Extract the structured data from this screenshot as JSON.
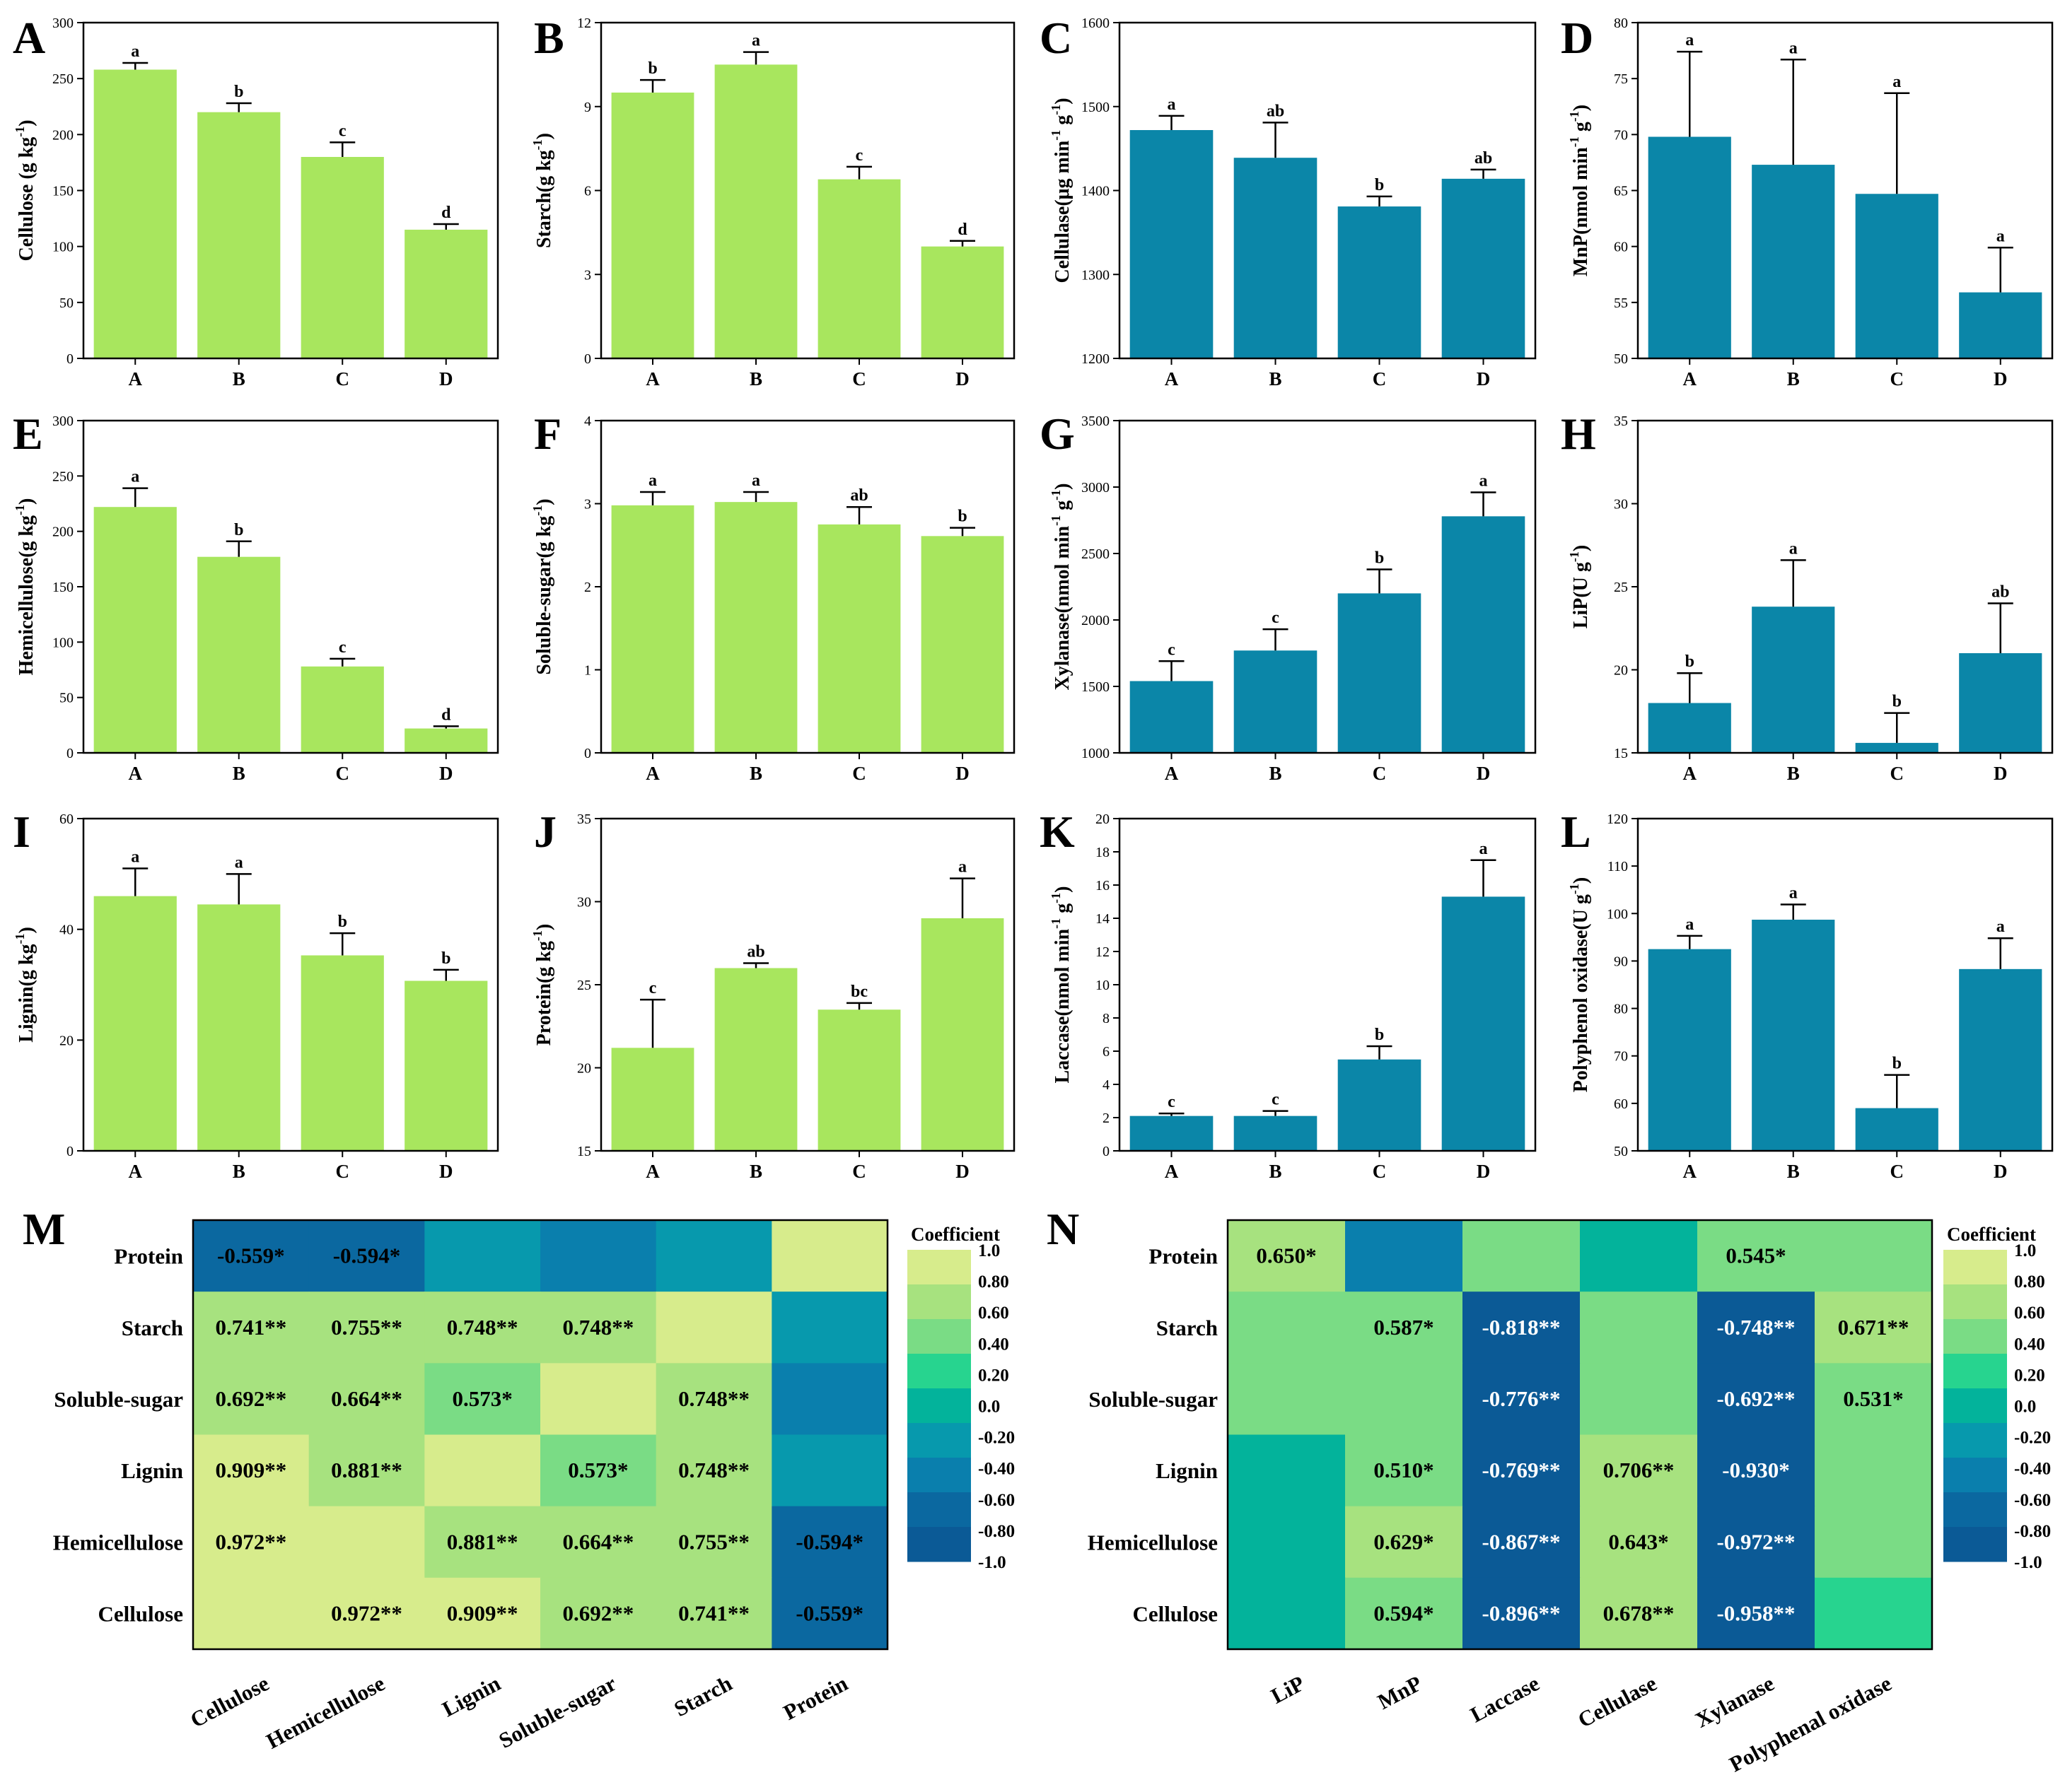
{
  "colors": {
    "green_bar": "#a8e65e",
    "blue_bar": "#0b86a8",
    "axis": "#000000",
    "scale": [
      "#d7ec8c",
      "#a7e27f",
      "#7adc85",
      "#27d48f",
      "#03b39b",
      "#0799ad",
      "#0a7fad",
      "#0b68a0",
      "#0b5a96"
    ]
  },
  "chart_data": [
    {
      "panel": "A",
      "type": "bar",
      "color": "green",
      "ylabel": "Cellulose (g kg-1)",
      "ylabel_base": "Cellulose (g kg",
      "ylabel_sup": "-1",
      "ylabel_tail": ")",
      "categories": [
        "A",
        "B",
        "C",
        "D"
      ],
      "values": [
        258,
        220,
        180,
        115
      ],
      "errors": [
        6,
        8,
        13,
        5
      ],
      "letters": [
        "a",
        "b",
        "c",
        "d"
      ],
      "ylim": [
        0,
        300
      ],
      "ticks": [
        0,
        50,
        100,
        150,
        200,
        250,
        300
      ]
    },
    {
      "panel": "B",
      "type": "bar",
      "color": "green",
      "ylabel": "Starch(g kg-1)",
      "ylabel_base": "Starch(g kg",
      "ylabel_sup": "-1",
      "ylabel_tail": ")",
      "categories": [
        "A",
        "B",
        "C",
        "D"
      ],
      "values": [
        9.5,
        10.5,
        6.4,
        4.0
      ],
      "errors": [
        0.45,
        0.45,
        0.45,
        0.2
      ],
      "letters": [
        "b",
        "a",
        "c",
        "d"
      ],
      "ylim": [
        0,
        12
      ],
      "ticks": [
        0,
        3,
        6,
        9,
        12
      ]
    },
    {
      "panel": "C",
      "type": "bar",
      "color": "blue",
      "ylabel": "Cellulase(μg min-1 g-1)",
      "ylabel_base": "Cellulase(μg min",
      "ylabel_sup": "-1",
      "ylabel_mid": " g",
      "ylabel_sup2": "-1",
      "ylabel_tail": ")",
      "categories": [
        "A",
        "B",
        "C",
        "D"
      ],
      "values": [
        1472,
        1439,
        1381,
        1414
      ],
      "errors": [
        17,
        42,
        12,
        11
      ],
      "letters": [
        "a",
        "ab",
        "b",
        "ab"
      ],
      "ylim": [
        1200,
        1600
      ],
      "ticks": [
        1200,
        1300,
        1400,
        1500,
        1600
      ]
    },
    {
      "panel": "D",
      "type": "bar",
      "color": "blue",
      "ylabel": "MnP(nmol min-1 g-1)",
      "ylabel_base": "MnP(nmol min",
      "ylabel_sup": "-1",
      "ylabel_mid": " g",
      "ylabel_sup2": "-1",
      "ylabel_tail": ")",
      "categories": [
        "A",
        "B",
        "C",
        "D"
      ],
      "values": [
        69.8,
        67.3,
        64.7,
        55.9
      ],
      "errors": [
        7.6,
        9.4,
        9.0,
        4.0
      ],
      "letters": [
        "a",
        "a",
        "a",
        "a"
      ],
      "ylim": [
        50,
        80
      ],
      "ticks": [
        50,
        55,
        60,
        65,
        70,
        75,
        80
      ]
    },
    {
      "panel": "E",
      "type": "bar",
      "color": "green",
      "ylabel": "Hemicellulose(g kg-1)",
      "ylabel_base": "Hemicellulose(g kg",
      "ylabel_sup": "-1",
      "ylabel_tail": ")",
      "categories": [
        "A",
        "B",
        "C",
        "D"
      ],
      "values": [
        222,
        177,
        78,
        22
      ],
      "errors": [
        17,
        14,
        7,
        2
      ],
      "letters": [
        "a",
        "b",
        "c",
        "d"
      ],
      "ylim": [
        0,
        300
      ],
      "ticks": [
        0,
        50,
        100,
        150,
        200,
        250,
        300
      ]
    },
    {
      "panel": "F",
      "type": "bar",
      "color": "green",
      "ylabel": "Soluble-sugar(g kg-1)",
      "ylabel_base": "Soluble-sugar(g kg",
      "ylabel_sup": "-1",
      "ylabel_tail": ")",
      "categories": [
        "A",
        "B",
        "C",
        "D"
      ],
      "values": [
        2.98,
        3.02,
        2.75,
        2.61
      ],
      "errors": [
        0.16,
        0.12,
        0.21,
        0.1
      ],
      "letters": [
        "a",
        "a",
        "ab",
        "b"
      ],
      "ylim": [
        0,
        4
      ],
      "ticks": [
        0,
        1,
        2,
        3,
        4
      ]
    },
    {
      "panel": "G",
      "type": "bar",
      "color": "blue",
      "ylabel": "Xylanase(nmol min-1 g-1)",
      "ylabel_base": "Xylanase(nmol min",
      "ylabel_sup": "-1",
      "ylabel_mid": " g",
      "ylabel_sup2": "-1",
      "ylabel_tail": ")",
      "categories": [
        "A",
        "B",
        "C",
        "D"
      ],
      "values": [
        1540,
        1770,
        2200,
        2780
      ],
      "errors": [
        150,
        160,
        180,
        180
      ],
      "letters": [
        "c",
        "c",
        "b",
        "a"
      ],
      "ylim": [
        1000,
        3500
      ],
      "ticks": [
        1000,
        1500,
        2000,
        2500,
        3000,
        3500
      ]
    },
    {
      "panel": "H",
      "type": "bar",
      "color": "blue",
      "ylabel": "LiP(U g-1)",
      "ylabel_base": "LiP(U g",
      "ylabel_sup": "-1",
      "ylabel_tail": ")",
      "categories": [
        "A",
        "B",
        "C",
        "D"
      ],
      "values": [
        18.0,
        23.8,
        15.6,
        21.0
      ],
      "errors": [
        1.8,
        2.8,
        1.8,
        3.0
      ],
      "letters": [
        "b",
        "a",
        "b",
        "ab"
      ],
      "ylim": [
        15,
        35
      ],
      "ticks": [
        15,
        20,
        25,
        30,
        35
      ]
    },
    {
      "panel": "I",
      "type": "bar",
      "color": "green",
      "ylabel": "Lignin(g kg-1)",
      "ylabel_base": "Lignin(g kg",
      "ylabel_sup": "-1",
      "ylabel_tail": ")",
      "categories": [
        "A",
        "B",
        "C",
        "D"
      ],
      "values": [
        46,
        44.5,
        35.3,
        30.7
      ],
      "errors": [
        5,
        5.5,
        4,
        2
      ],
      "letters": [
        "a",
        "a",
        "b",
        "b"
      ],
      "ylim": [
        0,
        60
      ],
      "ticks": [
        0,
        20,
        40,
        60
      ]
    },
    {
      "panel": "J",
      "type": "bar",
      "color": "green",
      "ylabel": "Protein(g kg-1)",
      "ylabel_base": "Protein(g kg",
      "ylabel_sup": "-1",
      "ylabel_tail": ")",
      "categories": [
        "A",
        "B",
        "C",
        "D"
      ],
      "values": [
        21.2,
        26.0,
        23.5,
        29.0
      ],
      "errors": [
        2.9,
        0.3,
        0.4,
        2.4
      ],
      "letters": [
        "c",
        "ab",
        "bc",
        "a"
      ],
      "ylim": [
        15,
        35
      ],
      "ticks": [
        15,
        20,
        25,
        30,
        35
      ]
    },
    {
      "panel": "K",
      "type": "bar",
      "color": "blue",
      "ylabel": "Laccase(nmol min-1 g-1)",
      "ylabel_base": "Laccase(nmol min",
      "ylabel_sup": "-1",
      "ylabel_mid": " g",
      "ylabel_sup2": "-1",
      "ylabel_tail": ")",
      "categories": [
        "A",
        "B",
        "C",
        "D"
      ],
      "values": [
        2.1,
        2.1,
        5.5,
        15.3
      ],
      "errors": [
        0.15,
        0.3,
        0.8,
        2.2
      ],
      "letters": [
        "c",
        "c",
        "b",
        "a"
      ],
      "ylim": [
        0,
        20
      ],
      "ticks": [
        0,
        2,
        4,
        6,
        8,
        10,
        12,
        14,
        16,
        18,
        20
      ]
    },
    {
      "panel": "L",
      "type": "bar",
      "color": "blue",
      "ylabel": "Polyphenol oxidase(U g-1)",
      "ylabel_base": "Polyphenol oxidase(U g",
      "ylabel_sup": "-1",
      "ylabel_tail": ")",
      "categories": [
        "A",
        "B",
        "C",
        "D"
      ],
      "values": [
        92.5,
        98.7,
        59.0,
        88.3
      ],
      "errors": [
        2.8,
        3.2,
        7.0,
        6.5
      ],
      "letters": [
        "a",
        "a",
        "b",
        "a"
      ],
      "ylim": [
        50,
        120
      ],
      "ticks": [
        50,
        60,
        70,
        80,
        90,
        100,
        110,
        120
      ]
    },
    {
      "panel": "M",
      "type": "heatmap",
      "rows": [
        "Protein",
        "Starch",
        "Soluble-sugar",
        "Lignin",
        "Hemicellulose",
        "Cellulose"
      ],
      "columns": [
        "Cellulose",
        "Hemicellulose",
        "Lignin",
        "Soluble-sugar",
        "Starch",
        "Protein"
      ],
      "values": [
        [
          -0.559,
          -0.594,
          -0.15,
          -0.35,
          -0.1,
          1.0
        ],
        [
          0.741,
          0.755,
          0.748,
          0.748,
          1.0,
          -0.1
        ],
        [
          0.692,
          0.664,
          0.573,
          1.0,
          0.748,
          -0.35
        ],
        [
          0.909,
          0.881,
          1.0,
          0.573,
          0.748,
          -0.15
        ],
        [
          0.972,
          1.0,
          0.881,
          0.664,
          0.755,
          -0.594
        ],
        [
          1.0,
          0.972,
          0.909,
          0.692,
          0.741,
          -0.559
        ]
      ],
      "labels": [
        [
          "-0.559*",
          "-0.594*",
          "",
          "",
          "",
          ""
        ],
        [
          "0.741**",
          "0.755**",
          "0.748**",
          "0.748**",
          "",
          ""
        ],
        [
          "0.692**",
          "0.664**",
          "0.573*",
          "",
          "0.748**",
          ""
        ],
        [
          "0.909**",
          "0.881**",
          "",
          "0.573*",
          "0.748**",
          ""
        ],
        [
          "0.972**",
          "",
          "0.881**",
          "0.664**",
          "0.755**",
          "-0.594*"
        ],
        [
          "",
          "0.972**",
          "0.909**",
          "0.692**",
          "0.741**",
          "-0.559*"
        ]
      ]
    },
    {
      "panel": "N",
      "type": "heatmap",
      "rows": [
        "Protein",
        "Starch",
        "Soluble-sugar",
        "Lignin",
        "Hemicellulose",
        "Cellulose"
      ],
      "columns": [
        "LiP",
        "MnP",
        "Laccase",
        "Cellulase",
        "Xylanase",
        "Polyphenal oxidase"
      ],
      "values": [
        [
          0.65,
          -0.45,
          0.4,
          0.05,
          0.545,
          0.4
        ],
        [
          0.4,
          0.587,
          -0.818,
          0.4,
          -0.748,
          0.671
        ],
        [
          0.4,
          0.4,
          -0.776,
          0.4,
          -0.692,
          0.531
        ],
        [
          0.05,
          0.51,
          -0.769,
          0.706,
          -0.93,
          0.4
        ],
        [
          0.05,
          0.629,
          -0.867,
          0.643,
          -0.972,
          0.4
        ],
        [
          0.05,
          0.594,
          -0.896,
          0.678,
          -0.958,
          0.2
        ]
      ],
      "labels": [
        [
          "0.650*",
          "",
          "",
          "",
          "0.545*",
          ""
        ],
        [
          "",
          "0.587*",
          "-0.818**",
          "",
          "-0.748**",
          "0.671**"
        ],
        [
          "",
          "",
          "-0.776**",
          "",
          "-0.692**",
          "0.531*"
        ],
        [
          "",
          "0.510*",
          "-0.769**",
          "0.706**",
          "-0.930*",
          ""
        ],
        [
          "",
          "0.629*",
          "-0.867**",
          "0.643*",
          "-0.972**",
          ""
        ],
        [
          "",
          "0.594*",
          "-0.896**",
          "0.678**",
          "-0.958**",
          ""
        ]
      ]
    }
  ],
  "legend": {
    "title": "Coefficient",
    "labels": [
      "1.0",
      "0.80",
      "0.60",
      "0.40",
      "0.20",
      "0.0",
      "-0.20",
      "-0.40",
      "-0.60",
      "-0.80",
      "-1.0"
    ]
  }
}
